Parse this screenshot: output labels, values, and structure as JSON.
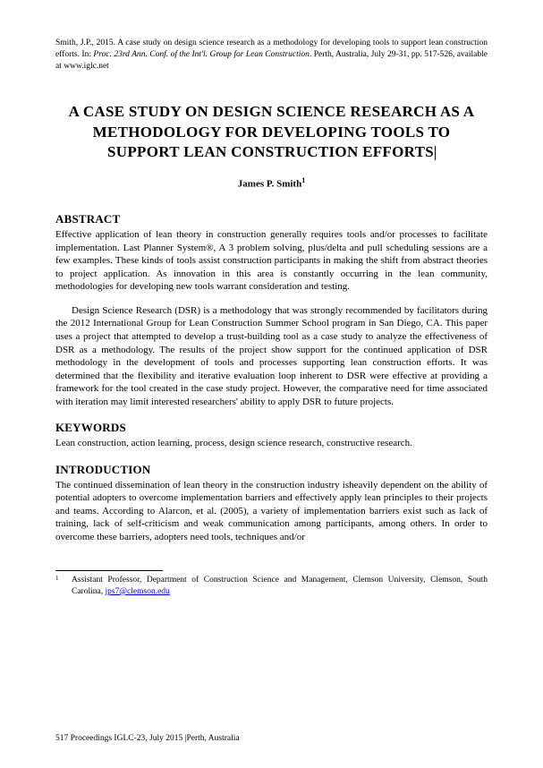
{
  "citation": {
    "prefix": "Smith, J.P., 2015. A case study on design science research as a methodology for developing tools to support lean construction efforts. In: ",
    "italic": "Proc. 23rd Ann. Conf. of the Int'l. Group for Lean Construction",
    "suffix": ". Perth, Australia, July 29-31, pp. 517-526, available at www.iglc.net"
  },
  "title": "A CASE STUDY ON DESIGN SCIENCE RESEARCH AS A METHODOLOGY FOR DEVELOPING TOOLS TO SUPPORT LEAN CONSTRUCTION EFFORTS",
  "author": "James P. Smith",
  "author_sup": "1",
  "sections": {
    "abstract": {
      "heading": "ABSTRACT",
      "p1": "Effective application of lean theory in construction generally requires tools and/or processes to facilitate implementation.  Last Planner System®, A 3 problem solving, plus/delta and pull scheduling sessions are a few examples.  These kinds of tools assist construction participants in making the shift from abstract theories to project application.  As innovation in this area is constantly occurring in the lean community, methodologies for developing new tools warrant consideration and testing.",
      "p2": "Design Science Research (DSR) is a methodology that was strongly recommended by facilitators during the 2012 International Group for Lean Construction Summer School program in San Diego, CA.   This paper uses a project that attempted to develop a trust-building tool as a case study to analyze the effectiveness of DSR as a methodology.  The results of the project show support for the continued application of DSR methodology in the development of tools and processes supporting lean construction efforts.  It was determined that the flexibility and iterative evaluation loop inherent to DSR were effective at providing a framework for the tool created in the case study project.  However, the comparative need for time associated with iteration may limit interested researchers' ability to apply DSR to future projects."
    },
    "keywords": {
      "heading": "KEYWORDS",
      "text": "Lean construction, action learning, process, design science research, constructive research."
    },
    "introduction": {
      "heading": "INTRODUCTION",
      "p1": "The continued dissemination of lean theory in the construction industry isheavily dependent on the ability of potential adopters to overcome implementation barriers and effectively apply lean principles to their projects and teams.  According to Alarcon, et al. (2005), a variety of implementation barriers exist such as lack of training, lack of self-criticism and weak communication among participants, among others.  In order to overcome these barriers, adopters need tools, techniques and/or"
    }
  },
  "footnote": {
    "num": "1",
    "text_before": "Assistant Professor, Department of Construction Science and Management, Clemson University, Clemson, South Carolina, ",
    "email": "jps7@clemson.edu"
  },
  "footer": "517 Proceedings IGLC-23, July 2015 |Perth, Australia"
}
